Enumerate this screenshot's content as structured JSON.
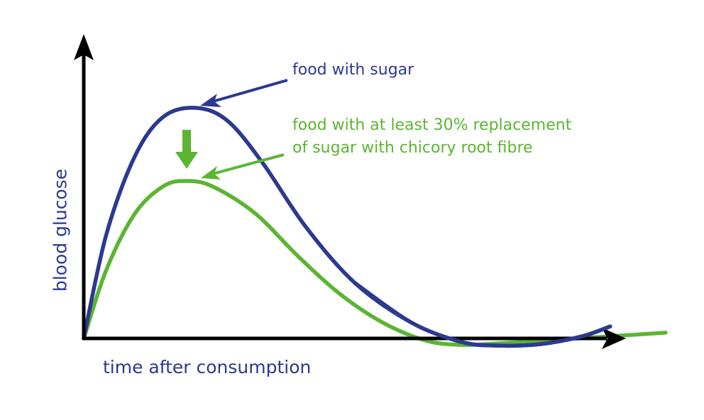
{
  "chart_data": {
    "type": "line",
    "title": "",
    "xlabel": "time after consumption",
    "ylabel": "blood glucose",
    "xlim": [
      0,
      10
    ],
    "ylim": [
      0,
      10
    ],
    "grid": false,
    "ticks": "none",
    "series": [
      {
        "name": "food with sugar",
        "color": "#2b3990",
        "points": [
          [
            0,
            0
          ],
          [
            0.42,
            4.52
          ],
          [
            0.95,
            7.91
          ],
          [
            1.47,
            9.6
          ],
          [
            2.07,
            10
          ],
          [
            2.66,
            9.45
          ],
          [
            3.32,
            7.6
          ],
          [
            4.11,
            4.86
          ],
          [
            5.03,
            2.4
          ],
          [
            6.08,
            0.68
          ],
          [
            7.0,
            -0.15
          ],
          [
            7.66,
            -0.31
          ],
          [
            8.45,
            -0.25
          ],
          [
            9.24,
            0.09
          ],
          [
            9.76,
            0.52
          ]
        ]
      },
      {
        "name": "food with at least 30% replacement of sugar with chicory root fibre",
        "color": "#5bb531",
        "points": [
          [
            0,
            0
          ],
          [
            0.42,
            2.98
          ],
          [
            0.95,
            5.42
          ],
          [
            1.47,
            6.59
          ],
          [
            1.89,
            6.83
          ],
          [
            2.39,
            6.59
          ],
          [
            3.18,
            5.42
          ],
          [
            3.97,
            3.57
          ],
          [
            4.76,
            1.91
          ],
          [
            5.55,
            0.68
          ],
          [
            6.34,
            -0.09
          ],
          [
            7.0,
            -0.28
          ],
          [
            7.66,
            -0.22
          ],
          [
            8.97,
            -0.03
          ],
          [
            10.79,
            0.25
          ]
        ]
      }
    ],
    "annotations": {
      "sugar_line1": "food with sugar",
      "fibre_line1": "food with at least 30% replacement",
      "fibre_line2": "of sugar with chicory root fibre"
    }
  }
}
